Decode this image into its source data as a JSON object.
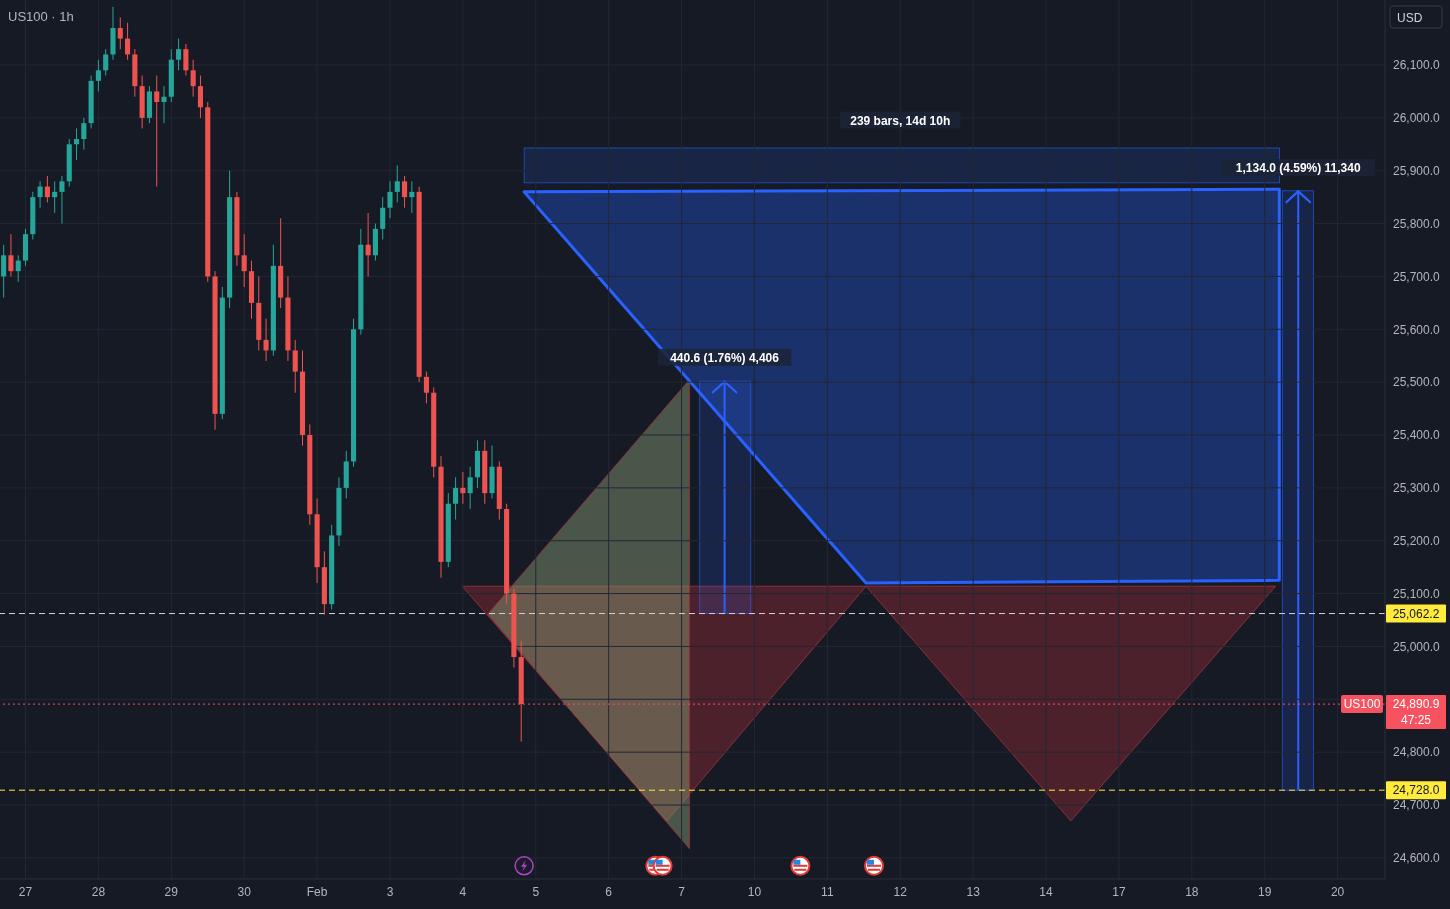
{
  "chart_data": {
    "type": "candlestick",
    "title": "US100 · 1h",
    "ylabel": "USD",
    "categories": [
      null,
      null,
      null,
      "27",
      null,
      null,
      null,
      null,
      null,
      null,
      null,
      null,
      null,
      "28",
      null,
      null,
      null,
      null,
      null,
      null,
      null,
      null,
      null,
      "29",
      null,
      null,
      null,
      null,
      null,
      null,
      null,
      null,
      null,
      "30",
      null,
      null,
      null,
      null,
      null,
      null,
      null,
      null,
      null,
      "Feb",
      null,
      null,
      null,
      null,
      null,
      null,
      null,
      null,
      null,
      "3",
      null,
      null,
      null,
      null,
      null,
      null,
      null,
      null,
      null,
      "4",
      null,
      null,
      null,
      null,
      null,
      null,
      null,
      null,
      null,
      "5",
      null,
      null,
      null,
      null,
      null,
      null,
      null,
      null,
      null,
      "6",
      null,
      null,
      null,
      null,
      null,
      null,
      null,
      null,
      null,
      "7",
      null,
      null,
      null,
      null,
      null,
      null,
      null,
      null,
      null,
      "10",
      null,
      null,
      null,
      null,
      null,
      null,
      null,
      null,
      null,
      "11",
      null,
      null,
      null,
      null,
      null,
      null,
      null,
      null,
      null,
      "12",
      null,
      null,
      null,
      null,
      null,
      null,
      null,
      null,
      null,
      "13",
      null,
      null,
      null,
      null,
      null,
      null,
      null,
      null,
      null,
      "14",
      null,
      null,
      null,
      null,
      null,
      null,
      null,
      null,
      null,
      "17",
      null,
      null,
      null,
      null,
      null,
      null,
      null,
      null,
      null,
      "18",
      null,
      null,
      null,
      null,
      null,
      null,
      null,
      null,
      null,
      "19",
      null,
      null,
      null,
      null,
      null,
      null,
      null,
      null,
      null,
      "20",
      null,
      null,
      null,
      null,
      null,
      null
    ],
    "ohlc": [
      [
        25700,
        25760,
        25660,
        25740
      ],
      [
        25740,
        25780,
        25700,
        25710
      ],
      [
        25710,
        25740,
        25690,
        25730
      ],
      [
        25730,
        25790,
        25720,
        25780
      ],
      [
        25780,
        25860,
        25770,
        25850
      ],
      [
        25850,
        25880,
        25830,
        25870
      ],
      [
        25870,
        25890,
        25840,
        25850
      ],
      [
        25850,
        25880,
        25820,
        25860
      ],
      [
        25860,
        25890,
        25800,
        25880
      ],
      [
        25880,
        25960,
        25870,
        25950
      ],
      [
        25950,
        25980,
        25920,
        25960
      ],
      [
        25960,
        26000,
        25940,
        25990
      ],
      [
        25990,
        26080,
        25980,
        26070
      ],
      [
        26070,
        26110,
        26050,
        26090
      ],
      [
        26090,
        26130,
        26080,
        26120
      ],
      [
        26120,
        26210,
        26110,
        26170
      ],
      [
        26170,
        26190,
        26130,
        26150
      ],
      [
        26150,
        26180,
        26110,
        26120
      ],
      [
        26120,
        26130,
        26040,
        26060
      ],
      [
        26060,
        26080,
        25980,
        26000
      ],
      [
        26000,
        26060,
        25990,
        26050
      ],
      [
        26050,
        26080,
        25870,
        26030
      ],
      [
        26030,
        26060,
        25990,
        26040
      ],
      [
        26040,
        26130,
        26030,
        26110
      ],
      [
        26110,
        26150,
        26090,
        26130
      ],
      [
        26130,
        26140,
        26080,
        26090
      ],
      [
        26090,
        26110,
        26040,
        26060
      ],
      [
        26060,
        26080,
        26000,
        26020
      ],
      [
        26020,
        26030,
        25690,
        25700
      ],
      [
        25700,
        25710,
        25410,
        25440
      ],
      [
        25440,
        25680,
        25430,
        25660
      ],
      [
        25660,
        25900,
        25640,
        25850
      ],
      [
        25850,
        25860,
        25720,
        25740
      ],
      [
        25740,
        25780,
        25680,
        25710
      ],
      [
        25710,
        25730,
        25620,
        25650
      ],
      [
        25650,
        25700,
        25560,
        25580
      ],
      [
        25580,
        25620,
        25540,
        25560
      ],
      [
        25560,
        25760,
        25550,
        25720
      ],
      [
        25720,
        25810,
        25640,
        25660
      ],
      [
        25660,
        25700,
        25540,
        25560
      ],
      [
        25560,
        25580,
        25480,
        25520
      ],
      [
        25520,
        25560,
        25380,
        25400
      ],
      [
        25400,
        25420,
        25230,
        25250
      ],
      [
        25250,
        25280,
        25120,
        25150
      ],
      [
        25150,
        25180,
        25060,
        25080
      ],
      [
        25080,
        25230,
        25070,
        25210
      ],
      [
        25210,
        25320,
        25190,
        25300
      ],
      [
        25300,
        25370,
        25280,
        25350
      ],
      [
        25350,
        25620,
        25340,
        25600
      ],
      [
        25600,
        25790,
        25590,
        25760
      ],
      [
        25760,
        25820,
        25700,
        25740
      ],
      [
        25740,
        25800,
        25730,
        25790
      ],
      [
        25790,
        25850,
        25770,
        25830
      ],
      [
        25830,
        25880,
        25810,
        25860
      ],
      [
        25860,
        25910,
        25840,
        25880
      ],
      [
        25880,
        25890,
        25830,
        25850
      ],
      [
        25850,
        25880,
        25820,
        25860
      ],
      [
        25860,
        25870,
        25500,
        25510
      ],
      [
        25510,
        25520,
        25460,
        25480
      ],
      [
        25480,
        25490,
        25320,
        25340
      ],
      [
        25340,
        25360,
        25130,
        25160
      ],
      [
        25160,
        25290,
        25150,
        25270
      ],
      [
        25270,
        25320,
        25240,
        25300
      ],
      [
        25300,
        25330,
        25270,
        25290
      ],
      [
        25290,
        25340,
        25260,
        25320
      ],
      [
        25320,
        25390,
        25300,
        25370
      ],
      [
        25370,
        25390,
        25270,
        25290
      ],
      [
        25290,
        25380,
        25280,
        25340
      ],
      [
        25340,
        25350,
        25240,
        25260
      ],
      [
        25260,
        25270,
        25080,
        25100
      ],
      [
        25100,
        25110,
        24960,
        24980
      ],
      [
        24980,
        25010,
        24820,
        24890.9
      ],
      null,
      null,
      null,
      null,
      null,
      null,
      null,
      null,
      null,
      null,
      null,
      null,
      null,
      null,
      null,
      null,
      null,
      null,
      null,
      null,
      null,
      null,
      null,
      null,
      null,
      null,
      null,
      null,
      null,
      null,
      null,
      null,
      null,
      null,
      null,
      null,
      null,
      null,
      null,
      null,
      null,
      null,
      null,
      null,
      null,
      null,
      null,
      null,
      null,
      null,
      null,
      null,
      null,
      null,
      null,
      null,
      null,
      null,
      null,
      null,
      null,
      null,
      null,
      null,
      null,
      null,
      null,
      null,
      null,
      null,
      null,
      null,
      null,
      null,
      null,
      null,
      null,
      null,
      null,
      null,
      null,
      null,
      null,
      null,
      null,
      null,
      null,
      null,
      null,
      null,
      null,
      null,
      null,
      null,
      null,
      null,
      null,
      null,
      null,
      null,
      null,
      null,
      null,
      null,
      null,
      null,
      null,
      null,
      null,
      null,
      null,
      null,
      null,
      null,
      null,
      null,
      null,
      null
    ],
    "colors": [
      "#26a69a",
      "#ef5350",
      "#26a69a",
      "#26a69a",
      "#26a69a",
      "#26a69a",
      "#ef5350",
      "#26a69a",
      "#26a69a",
      "#26a69a",
      "#26a69a",
      "#26a69a",
      "#26a69a",
      "#26a69a",
      "#26a69a",
      "#26a69a",
      "#ef5350",
      "#ef5350",
      "#ef5350",
      "#ef5350",
      "#26a69a",
      "#ef5350",
      "#26a69a",
      "#26a69a",
      "#26a69a",
      "#ef5350",
      "#ef5350",
      "#ef5350",
      "#ef5350",
      "#ef5350",
      "#26a69a",
      "#26a69a",
      "#ef5350",
      "#ef5350",
      "#ef5350",
      "#ef5350",
      "#ef5350",
      "#26a69a",
      "#ef5350",
      "#ef5350",
      "#ef5350",
      "#ef5350",
      "#ef5350",
      "#ef5350",
      "#ef5350",
      "#26a69a",
      "#26a69a",
      "#26a69a",
      "#26a69a",
      "#26a69a",
      "#ef5350",
      "#26a69a",
      "#26a69a",
      "#26a69a",
      "#26a69a",
      "#ef5350",
      "#26a69a",
      "#ef5350",
      "#ef5350",
      "#ef5350",
      "#ef5350",
      "#26a69a",
      "#26a69a",
      "#ef5350",
      "#26a69a",
      "#26a69a",
      "#ef5350",
      "#26a69a",
      "#ef5350",
      "#ef5350",
      "#ef5350",
      "#ef5350",
      null,
      null,
      null,
      null,
      null,
      null,
      null,
      null,
      null,
      null,
      null,
      null,
      null,
      null,
      null,
      null,
      null,
      null,
      null,
      null,
      null,
      null,
      null,
      null,
      null,
      null,
      null,
      null,
      null,
      null,
      null,
      null,
      null,
      null,
      null,
      null,
      null,
      null,
      null,
      null,
      null,
      null,
      null,
      null,
      null,
      null,
      null,
      null,
      null,
      null,
      null,
      null,
      null,
      null,
      null,
      null,
      null,
      null,
      null,
      null,
      null,
      null,
      null,
      null,
      null,
      null,
      null,
      null,
      null,
      null,
      null,
      null,
      null,
      null,
      null,
      null,
      null,
      null,
      null,
      null,
      null,
      null,
      null,
      null,
      null,
      null,
      null,
      null,
      null,
      null,
      null,
      null,
      null,
      null,
      null,
      null,
      null,
      null,
      null,
      null,
      null,
      null,
      null,
      null,
      null,
      null,
      null,
      null,
      null,
      null,
      null,
      null,
      null,
      null,
      null,
      null,
      null,
      null
    ],
    "ylim": [
      24560,
      26223
    ],
    "yticks": [
      {
        "value": 24600,
        "label": "24,600.0"
      },
      {
        "value": 24700,
        "label": "24,700.0"
      },
      {
        "value": 24800,
        "label": "24,800.0"
      },
      {
        "value": 24900,
        "label": null
      },
      {
        "value": 25000,
        "label": "25,000.0"
      },
      {
        "value": 25100,
        "label": "25,100.0"
      },
      {
        "value": 25200,
        "label": "25,200.0"
      },
      {
        "value": 25300,
        "label": "25,300.0"
      },
      {
        "value": 25400,
        "label": "25,400.0"
      },
      {
        "value": 25500,
        "label": "25,500.0"
      },
      {
        "value": 25600,
        "label": "25,600.0"
      },
      {
        "value": 25700,
        "label": "25,700.0"
      },
      {
        "value": 25800,
        "label": "25,800.0"
      },
      {
        "value": 25900,
        "label": "25,900.0"
      },
      {
        "value": 26000,
        "label": "26,000.0"
      },
      {
        "value": 26100,
        "label": "26,100.0"
      }
    ],
    "grid": true,
    "ref_lines": [
      {
        "axis": "y",
        "value": 25062.2,
        "label": "25,062.2",
        "color": "#d1d4dc",
        "line_style": "dashed"
      },
      {
        "axis": "y",
        "value": 24728.0,
        "label": "24,728.0",
        "color": "#ffeb3b",
        "line_style": "dashed"
      },
      {
        "axis": "y",
        "value": 24890.9,
        "label": "24,890.9\n47:25",
        "color": "#f7525f",
        "line_style": "dotted"
      }
    ],
    "annotations": [
      "239 bars, 14d 10h",
      "1,134.0 (4.59%) 11,340",
      "440.6 (1.76%) 4,406",
      {
        "text": "US100",
        "y": 24890.9
      }
    ]
  }
}
